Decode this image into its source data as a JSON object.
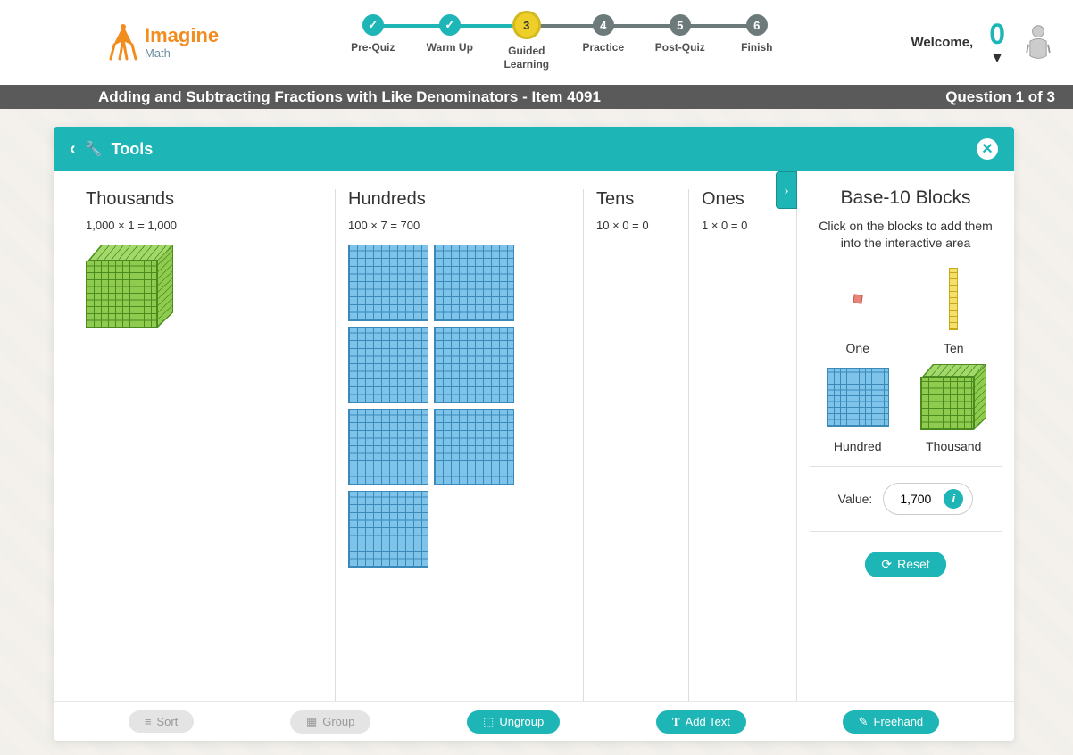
{
  "logo": {
    "brand": "Imagine",
    "sub": "Math"
  },
  "progress": {
    "steps": [
      {
        "label": "Pre-Quiz",
        "state": "done",
        "num": "✓"
      },
      {
        "label": "Warm Up",
        "state": "done",
        "num": "✓"
      },
      {
        "label": "Guided\nLearning",
        "state": "current",
        "num": "3"
      },
      {
        "label": "Practice",
        "state": "future",
        "num": "4"
      },
      {
        "label": "Post-Quiz",
        "state": "future",
        "num": "5"
      },
      {
        "label": "Finish",
        "state": "future",
        "num": "6"
      }
    ]
  },
  "user": {
    "welcome": "Welcome,",
    "score": "0"
  },
  "titlebar": {
    "title": "Adding and Subtracting Fractions with Like Denominators - Item 4091",
    "question": "Question 1 of 3"
  },
  "tools": {
    "title": "Tools"
  },
  "columns": {
    "thousands": {
      "title": "Thousands",
      "eq": "1,000 × 1 = 1,000",
      "count": 1
    },
    "hundreds": {
      "title": "Hundreds",
      "eq": "100 × 7 = 700",
      "count": 7
    },
    "tens": {
      "title": "Tens",
      "eq": "10 × 0 = 0",
      "count": 0
    },
    "ones": {
      "title": "Ones",
      "eq": "1 × 0 = 0",
      "count": 0
    }
  },
  "sidebar": {
    "title": "Base-10 Blocks",
    "hint": "Click on the blocks to add them into the interactive area",
    "blocks": {
      "one": "One",
      "ten": "Ten",
      "hundred": "Hundred",
      "thousand": "Thousand"
    },
    "value_label": "Value:",
    "value": "1,700",
    "reset": "Reset"
  },
  "bottom": {
    "sort": "Sort",
    "group": "Group",
    "ungroup": "Ungroup",
    "add_text": "Add Text",
    "freehand": "Freehand"
  },
  "colors": {
    "teal": "#1db5b5",
    "yellow": "#eecf2a",
    "gray_step": "#6d7a7a",
    "orange": "#f28c1e",
    "hundred_fill": "#7ec4ea",
    "hundred_line": "#3a89b8",
    "thousand_fill": "#8ecb4f",
    "thousand_line": "#4a8a1f",
    "ten_fill": "#f2e06a",
    "one_fill": "#e8847a"
  }
}
